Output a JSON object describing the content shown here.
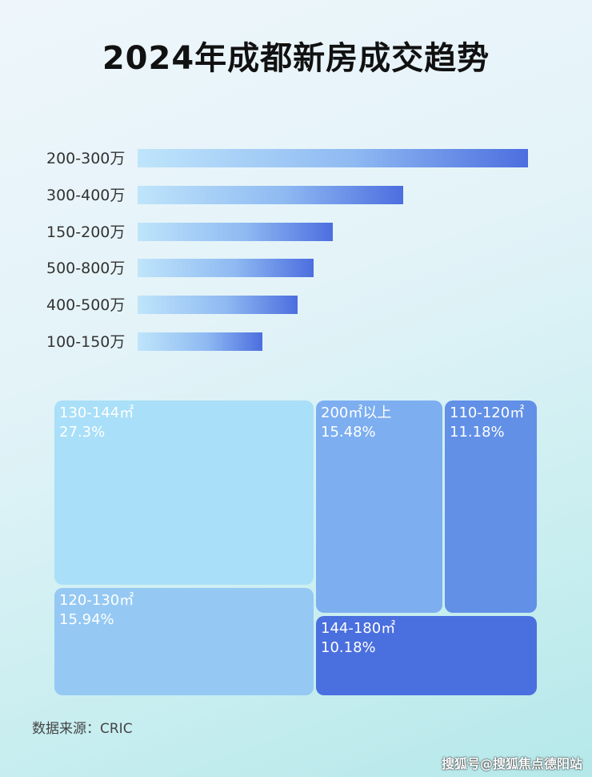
{
  "chart_data": [
    {
      "type": "bar",
      "orientation": "horizontal",
      "title": "2024年成都新房成交趋势",
      "categories": [
        "200-300万",
        "300-400万",
        "150-200万",
        "500-800万",
        "400-500万",
        "100-150万"
      ],
      "values": [
        100,
        68,
        50,
        45,
        41,
        32
      ],
      "value_scale": "relative (no axis printed; longest bar = 100)",
      "grid": false
    },
    {
      "type": "treemap",
      "items": [
        {
          "label": "130-144㎡",
          "value_label": "27.3%",
          "value": 27.3,
          "color": "#a9dff8"
        },
        {
          "label": "120-130㎡",
          "value_label": "15.94%",
          "value": 15.94,
          "color": "#95c9f3"
        },
        {
          "label": "200㎡以上",
          "value_label": "15.48%",
          "value": 15.48,
          "color": "#7caef0"
        },
        {
          "label": "110-120㎡",
          "value_label": "11.18%",
          "value": 11.18,
          "color": "#6190e6"
        },
        {
          "label": "144-180㎡",
          "value_label": "10.18%",
          "value": 10.18,
          "color": "#4a6fde"
        }
      ]
    }
  ],
  "source": "数据来源：CRIC",
  "watermark": "搜狐号@搜狐焦点德阳站"
}
